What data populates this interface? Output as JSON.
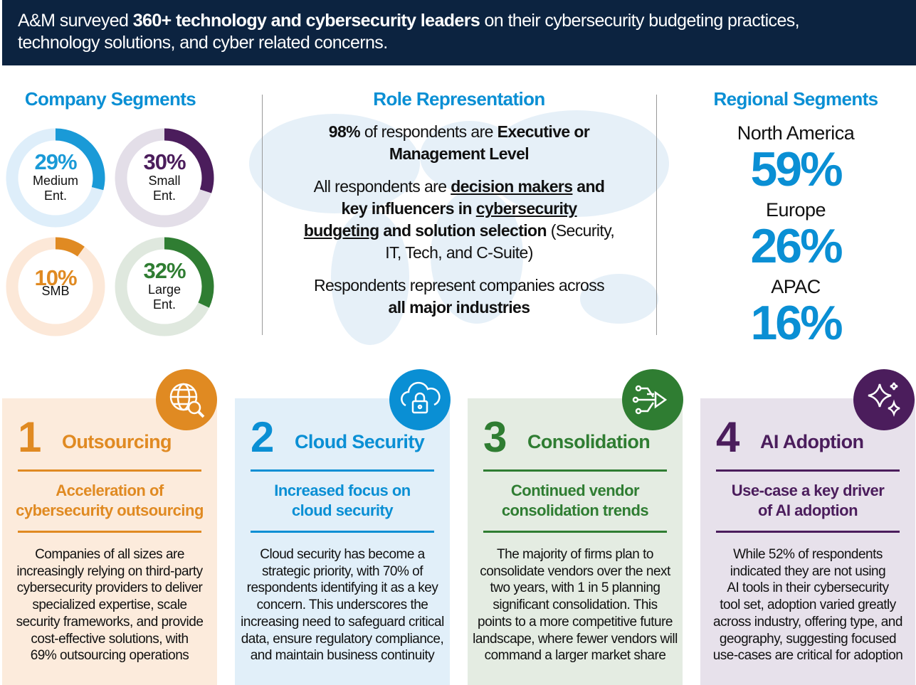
{
  "header": {
    "runs": [
      {
        "text": "A&M surveyed "
      },
      {
        "text": "360+ technology and cybersecurity leaders",
        "bold": true
      },
      {
        "text": " on their cybersecurity budgeting practices, technology solutions, and cyber related concerns."
      }
    ]
  },
  "company_segments": {
    "title": "Company Segments",
    "segments": [
      {
        "value": 29,
        "label": "29%",
        "name": [
          "Medium",
          "Ent."
        ],
        "color": "#1a9ad7",
        "track": "#deeefa"
      },
      {
        "value": 30,
        "label": "30%",
        "name": [
          "Small",
          "Ent."
        ],
        "color": "#4b1d5c",
        "track": "#e3dee8"
      },
      {
        "value": 10,
        "label": "10%",
        "name": [
          "SMB"
        ],
        "color": "#e08a22",
        "track": "#fce8d8"
      },
      {
        "value": 32,
        "label": "32%",
        "name": [
          "Large",
          "Ent."
        ],
        "color": "#2f7d32",
        "track": "#dfe8de"
      }
    ]
  },
  "role_representation": {
    "title": "Role Representation",
    "paragraphs": [
      [
        {
          "text": "98%",
          "bold": true
        },
        {
          "text": " of respondents are "
        },
        {
          "text": "Executive or Management Level",
          "bold": true
        }
      ],
      [
        {
          "text": "All respondents are "
        },
        {
          "text": "decision makers",
          "bold": true,
          "underline": true
        },
        {
          "text": " and key influencers in ",
          "bold": true
        },
        {
          "text": "cybersecurity budgeting",
          "bold": true,
          "underline": true
        },
        {
          "text": " and solution selection",
          "bold": true
        },
        {
          "text": " (Security, IT, Tech, and C-Suite)"
        }
      ],
      [
        {
          "text": "Respondents represent companies across "
        },
        {
          "text": "all major industries",
          "bold": true
        }
      ]
    ]
  },
  "regional_segments": {
    "title": "Regional Segments",
    "regions": [
      {
        "name": "North America",
        "share": "59%"
      },
      {
        "name": "Europe",
        "share": "26%"
      },
      {
        "name": "APAC",
        "share": "16%"
      }
    ]
  },
  "cards": [
    {
      "number": 1,
      "title": "Outsourcing",
      "subtitle": [
        "Acceleration of",
        "cybersecurity outsourcing"
      ],
      "color": "#e08a22",
      "background": "#fcebdc",
      "body": [
        "Companies of all sizes are",
        "increasingly relying on third-party",
        "cybersecurity providers to deliver",
        "specialized expertise, scale",
        "security frameworks, and provide",
        "cost-effective solutions, with",
        "69% outsourcing operations"
      ]
    },
    {
      "number": 2,
      "title": "Cloud Security",
      "subtitle": [
        "Increased focus on",
        "cloud security"
      ],
      "color": "#0a8fd4",
      "background": "#e1eff9",
      "body": [
        "Cloud security has become a",
        "strategic priority, with 70% of",
        "respondents identifying it as a key",
        "concern. This underscores the",
        "increasing need to safeguard critical",
        "data, ensure regulatory compliance,",
        "and maintain business continuity"
      ]
    },
    {
      "number": 3,
      "title": "Consolidation",
      "subtitle": [
        "Continued vendor",
        "consolidation trends"
      ],
      "color": "#2f7d32",
      "background": "#e4ece2",
      "body": [
        "The majority of firms plan to",
        "consolidate vendors over the next",
        "two years, with 1 in 5 planning",
        "significant consolidation. This",
        "points to a more competitive future",
        "landscape, where fewer vendors will",
        "command a larger market share"
      ]
    },
    {
      "number": 4,
      "title": "AI Adoption",
      "subtitle": [
        "Use-case a key driver",
        "of AI adoption"
      ],
      "color": "#4b1d5c",
      "background": "#e7e1eb",
      "body": [
        "While 52% of respondents",
        "indicated they are not using",
        "AI tools in their cybersecurity",
        "tool set, adoption varied greatly",
        "across industry, offering type, and",
        "geography, suggesting focused",
        "use-cases are critical for adoption"
      ]
    }
  ]
}
